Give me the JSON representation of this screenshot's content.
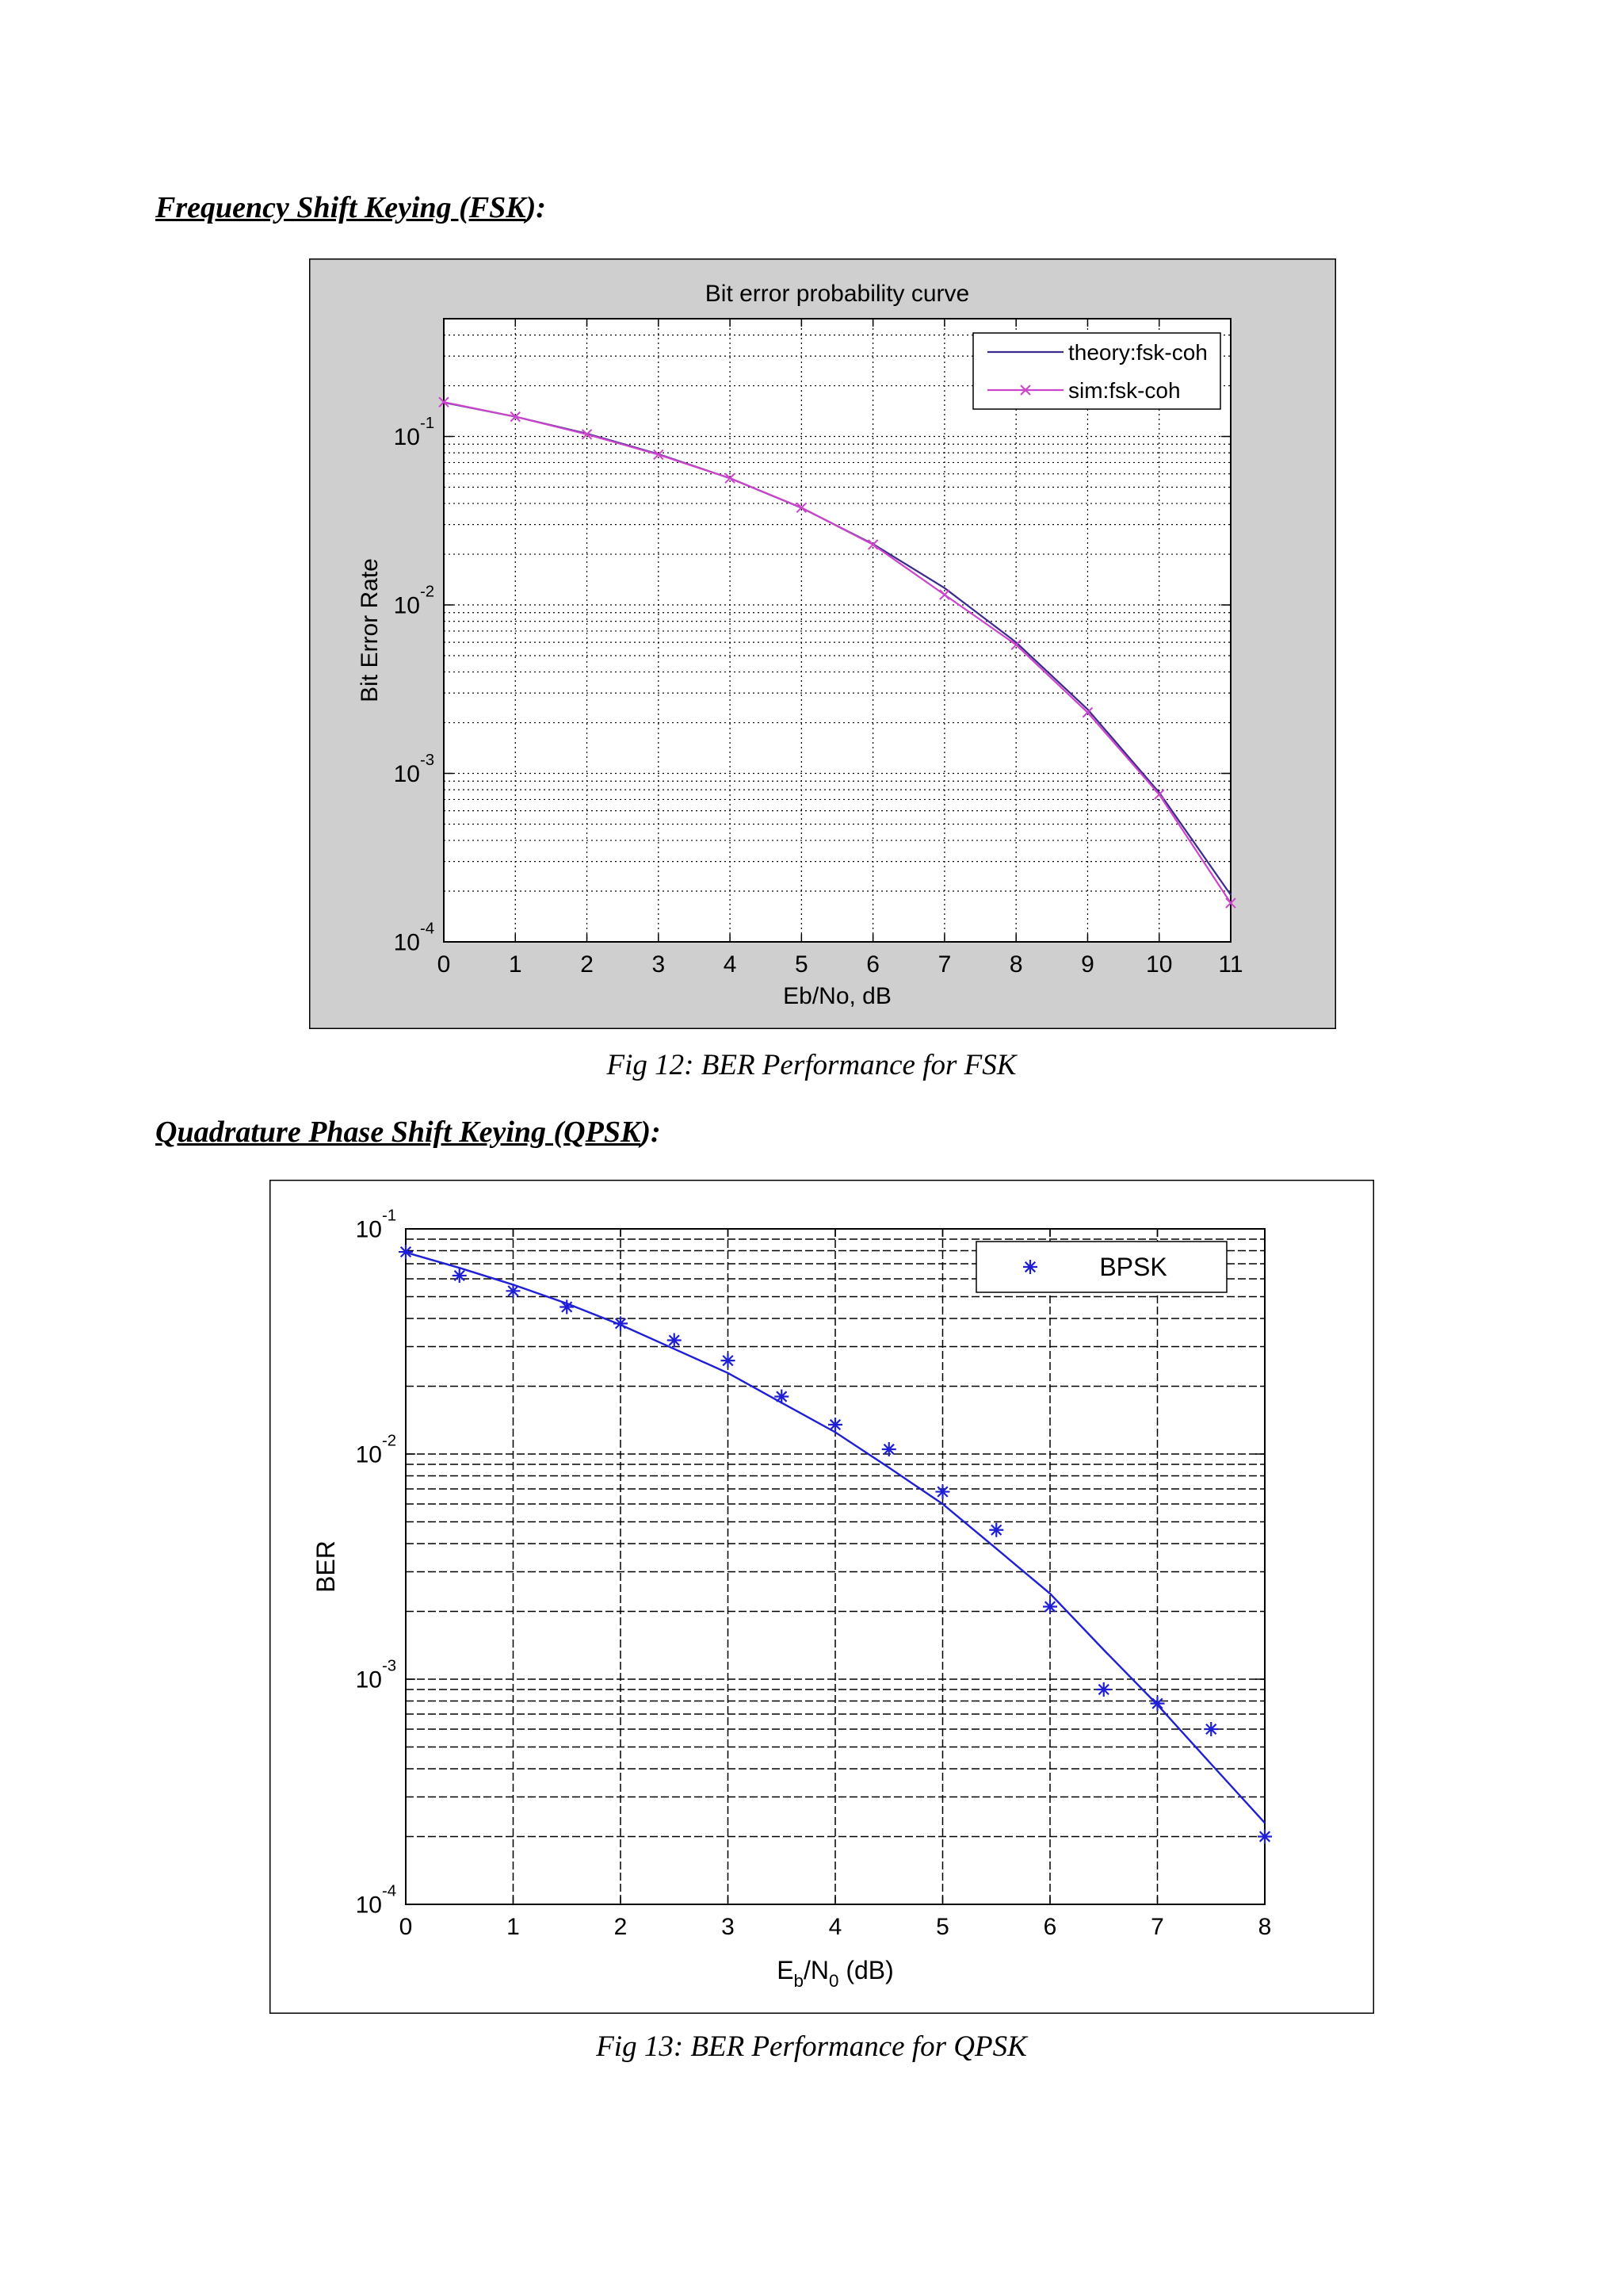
{
  "sections": [
    {
      "heading_main": "Frequency Shift Keying (FSK",
      "heading_tail": "):",
      "caption": "Fig 12: BER Performance for FSK"
    },
    {
      "heading_main": "Quadrature Phase Shift Keying (QPSK",
      "heading_tail": "):",
      "caption": "Fig 13: BER Performance for QPSK"
    }
  ],
  "chart_data": [
    {
      "type": "line",
      "title": "Bit error probability curve",
      "xlabel": "Eb/No, dB",
      "ylabel": "Bit Error Rate",
      "xlim": [
        0,
        11
      ],
      "ylim": [
        0.0001,
        0.5
      ],
      "yscale": "log",
      "grid": true,
      "legend_position": "top-right",
      "x_ticks": [
        "0",
        "1",
        "2",
        "3",
        "4",
        "5",
        "6",
        "7",
        "8",
        "9",
        "10",
        "11"
      ],
      "y_ticks": [
        {
          "base": "10",
          "exp": "-1",
          "value": 0.1
        },
        {
          "base": "10",
          "exp": "-2",
          "value": 0.01
        },
        {
          "base": "10",
          "exp": "-3",
          "value": 0.001
        },
        {
          "base": "10",
          "exp": "-4",
          "value": 0.0001
        }
      ],
      "x": [
        0,
        1,
        2,
        3,
        4,
        5,
        6,
        7,
        8,
        9,
        10,
        11
      ],
      "series": [
        {
          "name": "theory:fsk-coh",
          "color": "#3a2b8c",
          "marker": "none",
          "values": [
            0.159,
            0.131,
            0.104,
            0.0786,
            0.0565,
            0.0377,
            0.023,
            0.0126,
            0.006,
            0.0024,
            0.00077,
            0.00019
          ]
        },
        {
          "name": "sim:fsk-coh",
          "color": "#cc44cc",
          "marker": "x",
          "values": [
            0.16,
            0.131,
            0.103,
            0.078,
            0.0565,
            0.0378,
            0.0228,
            0.0115,
            0.0058,
            0.0023,
            0.00075,
            0.00017
          ]
        }
      ]
    },
    {
      "type": "line",
      "title": "",
      "xlabel": "E_b/N_0 (dB)",
      "xlabel_parts": {
        "main1": "E",
        "sub1": "b",
        "mid": "/N",
        "sub2": "0",
        "tail": " (dB)"
      },
      "ylabel": "BER",
      "xlim": [
        0,
        8
      ],
      "ylim": [
        0.0001,
        0.1
      ],
      "yscale": "log",
      "grid": true,
      "legend_position": "top-right",
      "x_ticks": [
        "0",
        "1",
        "2",
        "3",
        "4",
        "5",
        "6",
        "7",
        "8"
      ],
      "y_ticks": [
        {
          "base": "10",
          "exp": "-1",
          "value": 0.1
        },
        {
          "base": "10",
          "exp": "-2",
          "value": 0.01
        },
        {
          "base": "10",
          "exp": "-3",
          "value": 0.001
        },
        {
          "base": "10",
          "exp": "-4",
          "value": 0.0001
        }
      ],
      "series": [
        {
          "name": "",
          "color": "#1f1fd6",
          "marker": "none",
          "x": [
            0,
            0.5,
            1,
            1.5,
            2,
            2.5,
            3,
            3.5,
            4,
            4.5,
            5,
            5.5,
            6,
            6.5,
            7,
            7.5,
            8
          ],
          "values": [
            0.0786,
            0.0671,
            0.0565,
            0.0466,
            0.0375,
            0.0293,
            0.0229,
            0.0169,
            0.0125,
            0.0087,
            0.006,
            0.0038,
            0.0024,
            0.00135,
            0.00077,
            0.00042,
            0.00023
          ]
        },
        {
          "name": "BPSK",
          "color": "#1f1fd6",
          "marker": "*",
          "x": [
            0,
            0.5,
            1,
            1.5,
            2,
            2.5,
            3,
            3.5,
            4,
            4.5,
            5,
            5.5,
            6,
            6.5,
            7,
            7.5,
            8
          ],
          "values": [
            0.079,
            0.062,
            0.053,
            0.045,
            0.038,
            0.032,
            0.026,
            0.018,
            0.0135,
            0.0105,
            0.0068,
            0.0046,
            0.0021,
            0.0009,
            0.00078,
            0.0006,
            0.0002
          ]
        }
      ]
    }
  ]
}
